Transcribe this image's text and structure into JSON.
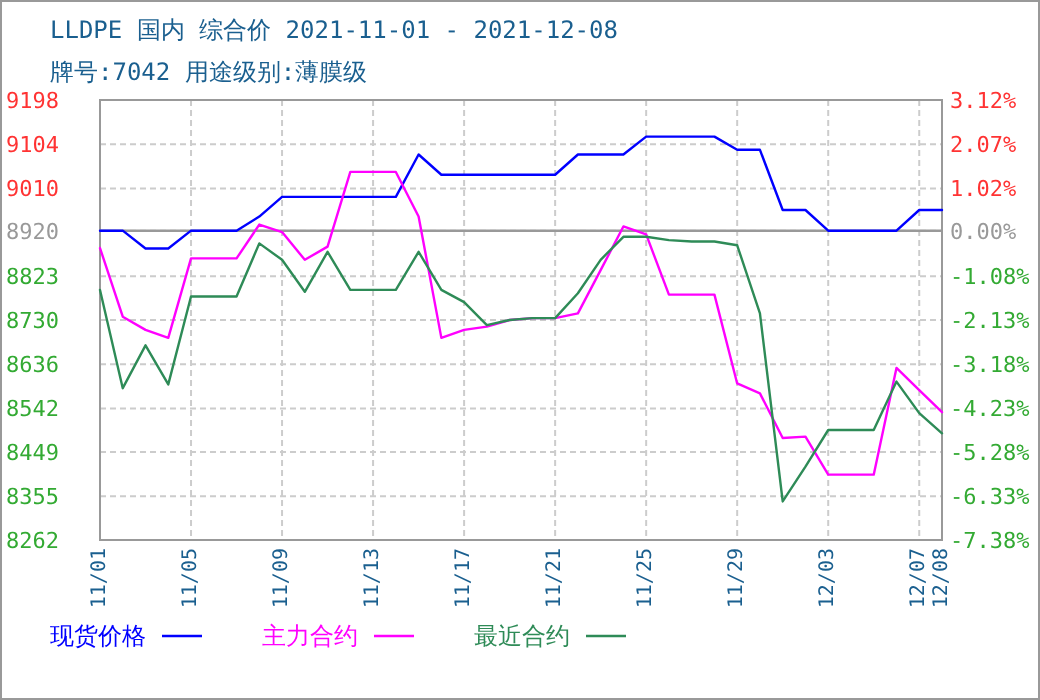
{
  "chart_data": {
    "type": "line",
    "title": "LLDPE 国内 综合价 2021-11-01 - 2021-12-08",
    "subtitle": "牌号:7042 用途级别:薄膜级",
    "x": [
      "2021-11-01",
      "2021-11-02",
      "2021-11-03",
      "2021-11-04",
      "2021-11-05",
      "2021-11-06",
      "2021-11-07",
      "2021-11-08",
      "2021-11-09",
      "2021-11-10",
      "2021-11-11",
      "2021-11-12",
      "2021-11-13",
      "2021-11-14",
      "2021-11-15",
      "2021-11-16",
      "2021-11-17",
      "2021-11-18",
      "2021-11-19",
      "2021-11-20",
      "2021-11-21",
      "2021-11-22",
      "2021-11-23",
      "2021-11-24",
      "2021-11-25",
      "2021-11-26",
      "2021-11-27",
      "2021-11-28",
      "2021-11-29",
      "2021-11-30",
      "2021-12-01",
      "2021-12-02",
      "2021-12-03",
      "2021-12-04",
      "2021-12-05",
      "2021-12-06",
      "2021-12-07",
      "2021-12-08"
    ],
    "series": [
      {
        "name": "现货价格",
        "color": "#0000ff",
        "values": [
          8920,
          8920,
          8882,
          8882,
          8920,
          8920,
          8920,
          8950,
          8992,
          8992,
          8992,
          8992,
          8992,
          8992,
          9082,
          9039,
          9039,
          9039,
          9039,
          9039,
          9039,
          9082,
          9082,
          9082,
          9120,
          9120,
          9120,
          9120,
          9092,
          9092,
          8964,
          8964,
          8920,
          8920,
          8920,
          8920,
          8964,
          8964
        ]
      },
      {
        "name": "主力合约",
        "color": "#ff00ff",
        "values": [
          8883,
          8737,
          8709,
          8692,
          8861,
          8861,
          8861,
          8933,
          8917,
          8858,
          8886,
          9045,
          9045,
          9045,
          8950,
          8692,
          8709,
          8716,
          8730,
          8734,
          8734,
          8744,
          8836,
          8929,
          8912,
          8784,
          8784,
          8784,
          8595,
          8574,
          8479,
          8482,
          8401,
          8401,
          8401,
          8628,
          8581,
          8534
        ]
      },
      {
        "name": "最近合约",
        "color": "#2e8b57",
        "values": [
          8794,
          8585,
          8676,
          8593,
          8780,
          8780,
          8780,
          8893,
          8858,
          8790,
          8875,
          8794,
          8794,
          8794,
          8875,
          8794,
          8768,
          8719,
          8730,
          8734,
          8734,
          8787,
          8858,
          8907,
          8907,
          8900,
          8897,
          8897,
          8889,
          8744,
          8344,
          8418,
          8496,
          8496,
          8496,
          8599,
          8532,
          8489
        ]
      }
    ],
    "xlim": [
      "2021-11-01",
      "2021-12-08"
    ],
    "xticks": [
      {
        "value": "2021-11-01",
        "label": "11/01"
      },
      {
        "value": "2021-11-05",
        "label": "11/05"
      },
      {
        "value": "2021-11-09",
        "label": "11/09"
      },
      {
        "value": "2021-11-13",
        "label": "11/13"
      },
      {
        "value": "2021-11-17",
        "label": "11/17"
      },
      {
        "value": "2021-11-21",
        "label": "11/21"
      },
      {
        "value": "2021-11-25",
        "label": "11/25"
      },
      {
        "value": "2021-11-29",
        "label": "11/29"
      },
      {
        "value": "2021-12-03",
        "label": "12/03"
      },
      {
        "value": "2021-12-07",
        "label": "12/07"
      },
      {
        "value": "2021-12-08",
        "label": "12/08"
      }
    ],
    "ylim": [
      8262,
      9198
    ],
    "yticks": [
      8262,
      8355,
      8449,
      8542,
      8636,
      8730,
      8823,
      8920,
      9010,
      9104,
      9198
    ],
    "y2lim": [
      -7.38,
      3.12
    ],
    "y2ticks": [
      {
        "value": -7.38,
        "label": "-7.38%"
      },
      {
        "value": -6.33,
        "label": "-6.33%"
      },
      {
        "value": -5.28,
        "label": "-5.28%"
      },
      {
        "value": -4.23,
        "label": "-4.23%"
      },
      {
        "value": -3.18,
        "label": "-3.18%"
      },
      {
        "value": -2.13,
        "label": "-2.13%"
      },
      {
        "value": -1.08,
        "label": "-1.08%"
      },
      {
        "value": 0,
        "label": "0.00%"
      },
      {
        "value": 1.02,
        "label": "1.02%"
      },
      {
        "value": 2.07,
        "label": "2.07%"
      },
      {
        "value": 3.12,
        "label": "3.12%"
      }
    ],
    "ref_lines": [
      {
        "axis": "y",
        "value": 8920,
        "color": "#999999"
      }
    ],
    "grid": true,
    "legend": "bottom",
    "marker": "none",
    "line_style": "solid"
  }
}
